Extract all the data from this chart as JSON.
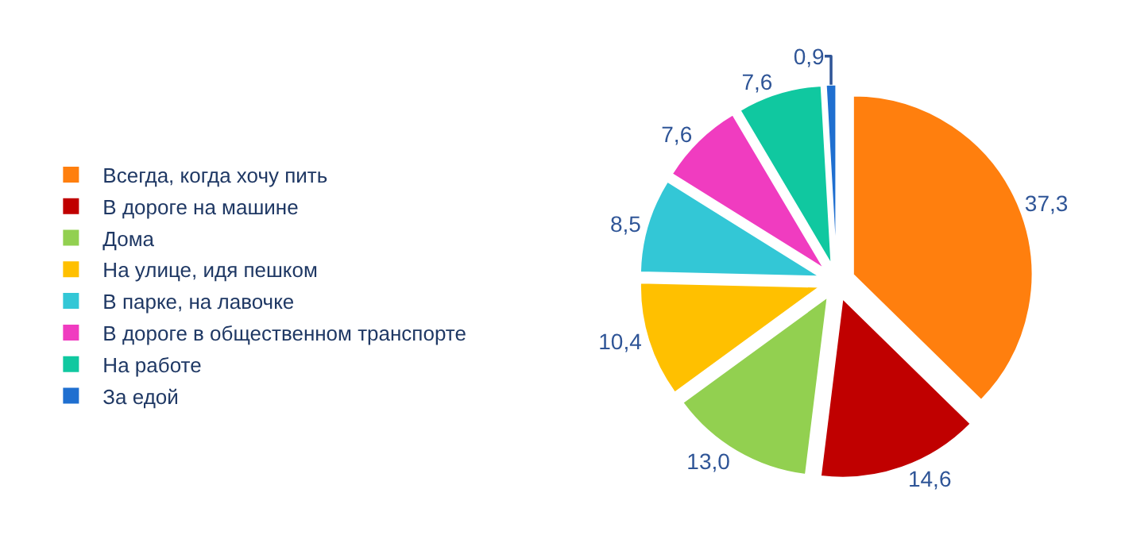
{
  "chart_data": {
    "type": "pie",
    "categories": [
      "Всегда, когда хочу пить",
      "В дороге на машине",
      "Дома",
      "На улице, идя пешком",
      "В парке, на лавочке",
      "В дороге в общественном транспорте",
      "На работе",
      "За едой"
    ],
    "values": [
      37.3,
      14.6,
      13.0,
      10.4,
      8.5,
      7.6,
      7.6,
      0.9
    ],
    "value_labels": [
      "37,3",
      "14,6",
      "13,0",
      "10,4",
      "8,5",
      "7,6",
      "7,6",
      "0,9"
    ],
    "colors": [
      "#ff7f0e",
      "#c00000",
      "#92d050",
      "#ffc000",
      "#33c7d6",
      "#f03cc0",
      "#10c8a0",
      "#1f6fd0"
    ],
    "legend": "left"
  }
}
